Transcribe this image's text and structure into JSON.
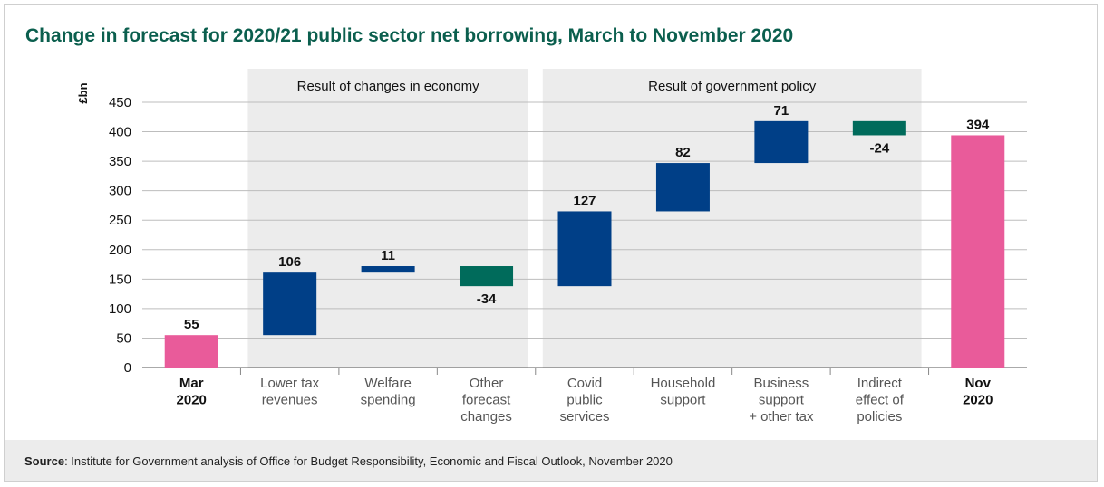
{
  "title": "Change in forecast for 2020/21 public sector net borrowing, March to November 2020",
  "source": {
    "label": "Source",
    "text": ": Institute for Government analysis of Office for Budget Responsibility, Economic and Fiscal Outlook, November 2020"
  },
  "colors": {
    "total": "#e95b9a",
    "increase": "#003f87",
    "decrease": "#006b5b",
    "title": "#0b5f4e",
    "panel": "#ececec"
  },
  "chart_data": {
    "type": "bar",
    "subtype": "waterfall",
    "ylabel": "£bn",
    "ylim": [
      0,
      450
    ],
    "yticks": [
      0,
      50,
      100,
      150,
      200,
      250,
      300,
      350,
      400,
      450
    ],
    "grid": true,
    "groups": [
      {
        "label": "Result of changes in economy",
        "categories": [
          1,
          2,
          3
        ]
      },
      {
        "label": "Result of government policy",
        "categories": [
          4,
          5,
          6,
          7
        ]
      }
    ],
    "bars": [
      {
        "category": [
          "Mar",
          "2020"
        ],
        "bold": true,
        "kind": "total",
        "start": 0,
        "end": 55,
        "label": "55"
      },
      {
        "category": [
          "Lower tax",
          "revenues"
        ],
        "bold": false,
        "kind": "increase",
        "start": 55,
        "end": 161,
        "label": "106"
      },
      {
        "category": [
          "Welfare",
          "spending"
        ],
        "bold": false,
        "kind": "increase",
        "start": 161,
        "end": 172,
        "label": "11"
      },
      {
        "category": [
          "Other",
          "forecast",
          "changes"
        ],
        "bold": false,
        "kind": "decrease",
        "start": 172,
        "end": 138,
        "label": "-34"
      },
      {
        "category": [
          "Covid",
          "public",
          "services"
        ],
        "bold": false,
        "kind": "increase",
        "start": 138,
        "end": 265,
        "label": "127"
      },
      {
        "category": [
          "Household",
          "support"
        ],
        "bold": false,
        "kind": "increase",
        "start": 265,
        "end": 347,
        "label": "82"
      },
      {
        "category": [
          "Business",
          "support",
          "+ other tax"
        ],
        "bold": false,
        "kind": "increase",
        "start": 347,
        "end": 418,
        "label": "71"
      },
      {
        "category": [
          "Indirect",
          "effect of",
          "policies"
        ],
        "bold": false,
        "kind": "decrease",
        "start": 418,
        "end": 394,
        "label": "-24"
      },
      {
        "category": [
          "Nov",
          "2020"
        ],
        "bold": true,
        "kind": "total",
        "start": 0,
        "end": 394,
        "label": "394"
      }
    ]
  }
}
